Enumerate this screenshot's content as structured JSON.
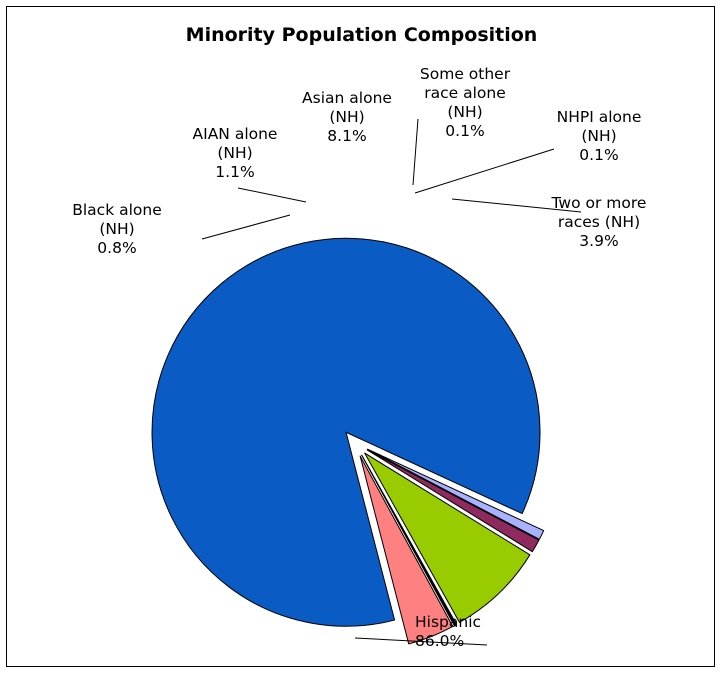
{
  "chart_data": {
    "type": "pie",
    "title": "Minority Population Composition",
    "exploded": true,
    "slices": [
      {
        "label_lines": [
          "Hispanic"
        ],
        "percent_label": "86.0%",
        "value": 86.0,
        "color": "#0a5bc4"
      },
      {
        "label_lines": [
          "Black alone",
          "(NH)"
        ],
        "percent_label": "0.8%",
        "value": 0.8,
        "color": "#a9b2ff"
      },
      {
        "label_lines": [
          "AIAN alone",
          "(NH)"
        ],
        "percent_label": "1.1%",
        "value": 1.1,
        "color": "#8e2a5e"
      },
      {
        "label_lines": [
          "Asian alone",
          "(NH)"
        ],
        "percent_label": "8.1%",
        "value": 8.1,
        "color": "#99cc00"
      },
      {
        "label_lines": [
          "Some other",
          "race alone",
          "(NH)"
        ],
        "percent_label": "0.1%",
        "value": 0.1,
        "color": "#4a4a4a"
      },
      {
        "label_lines": [
          "NHPI alone",
          "(NH)"
        ],
        "percent_label": "0.1%",
        "value": 0.1,
        "color": "#1a1a8c"
      },
      {
        "label_lines": [
          "Two or more",
          "races (NH)"
        ],
        "percent_label": "3.9%",
        "value": 3.9,
        "color": "#ff8080"
      }
    ]
  }
}
